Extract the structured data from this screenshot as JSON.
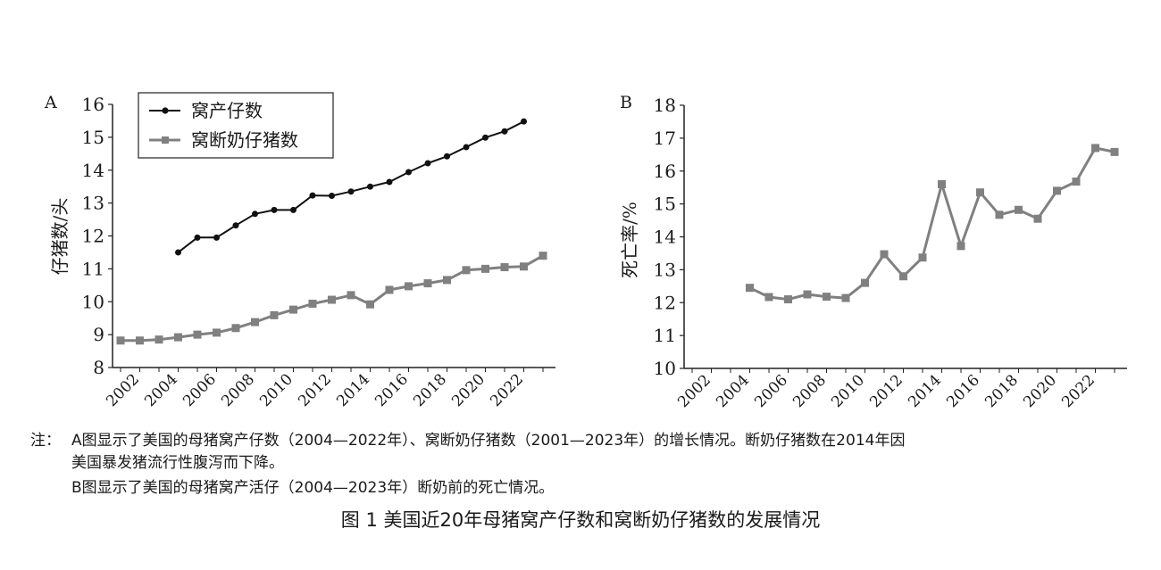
{
  "chart_data": [
    {
      "type": "line",
      "panel_label": "A",
      "ylabel": "仔猪数/头",
      "xlabel": "",
      "ylim": [
        8,
        16
      ],
      "yticks": [
        8,
        9,
        10,
        11,
        12,
        13,
        14,
        15,
        16
      ],
      "xlim": [
        2001,
        2023
      ],
      "x_tick_labels": [
        "2002",
        "2004",
        "2006",
        "2008",
        "2010",
        "2012",
        "2014",
        "2016",
        "2018",
        "2020",
        "2022"
      ],
      "legend_position": "top-left",
      "series": [
        {
          "name": "窝产仔数",
          "color": "#111111",
          "marker": "circle",
          "x": [
            2004,
            2005,
            2006,
            2007,
            2008,
            2009,
            2010,
            2011,
            2012,
            2013,
            2014,
            2015,
            2016,
            2017,
            2018,
            2019,
            2020,
            2021,
            2022
          ],
          "values": [
            11.5,
            11.95,
            11.95,
            12.32,
            12.67,
            12.79,
            12.79,
            13.23,
            13.22,
            13.35,
            13.5,
            13.64,
            13.94,
            14.21,
            14.42,
            14.7,
            14.99,
            15.18,
            15.48
          ]
        },
        {
          "name": "窝断奶仔猪数",
          "color": "#808080",
          "marker": "square",
          "x": [
            2001,
            2002,
            2003,
            2004,
            2005,
            2006,
            2007,
            2008,
            2009,
            2010,
            2011,
            2012,
            2013,
            2014,
            2015,
            2016,
            2017,
            2018,
            2019,
            2020,
            2021,
            2022,
            2023
          ],
          "values": [
            8.82,
            8.82,
            8.85,
            8.92,
            9.0,
            9.06,
            9.2,
            9.38,
            9.59,
            9.76,
            9.94,
            10.06,
            10.2,
            9.92,
            10.36,
            10.47,
            10.56,
            10.66,
            10.96,
            11.0,
            11.05,
            11.07,
            11.4
          ]
        }
      ]
    },
    {
      "type": "line",
      "panel_label": "B",
      "ylabel": "死亡率/%",
      "xlabel": "",
      "ylim": [
        10,
        18
      ],
      "yticks": [
        10,
        11,
        12,
        13,
        14,
        15,
        16,
        17,
        18
      ],
      "xlim": [
        2001,
        2023
      ],
      "x_tick_labels": [
        "2002",
        "2004",
        "2006",
        "2008",
        "2010",
        "2012",
        "2014",
        "2016",
        "2018",
        "2020",
        "2022"
      ],
      "series": [
        {
          "color": "#808080",
          "marker": "square",
          "x": [
            2004,
            2005,
            2006,
            2007,
            2008,
            2009,
            2010,
            2011,
            2012,
            2013,
            2014,
            2015,
            2016,
            2017,
            2018,
            2019,
            2020,
            2021,
            2022,
            2023
          ],
          "values": [
            12.45,
            12.17,
            12.1,
            12.25,
            12.18,
            12.14,
            12.6,
            13.47,
            12.8,
            13.37,
            15.6,
            13.72,
            15.35,
            14.67,
            14.82,
            14.55,
            15.4,
            15.68,
            16.7,
            16.58
          ]
        }
      ]
    }
  ],
  "notes": {
    "label": "注：",
    "line1": "A图显示了美国的母猪窝产仔数（2004—2022年）、窝断奶仔猪数（2001—2023年）的增长情况。断奶仔猪数在2014年因",
    "line2": "美国暴发猪流行性腹泻而下降。",
    "line3": "B图显示了美国的母猪窝产活仔（2004—2023年）断奶前的死亡情况。"
  },
  "caption": "图 1  美国近20年母猪窝产仔数和窝断奶仔猪数的发展情况"
}
